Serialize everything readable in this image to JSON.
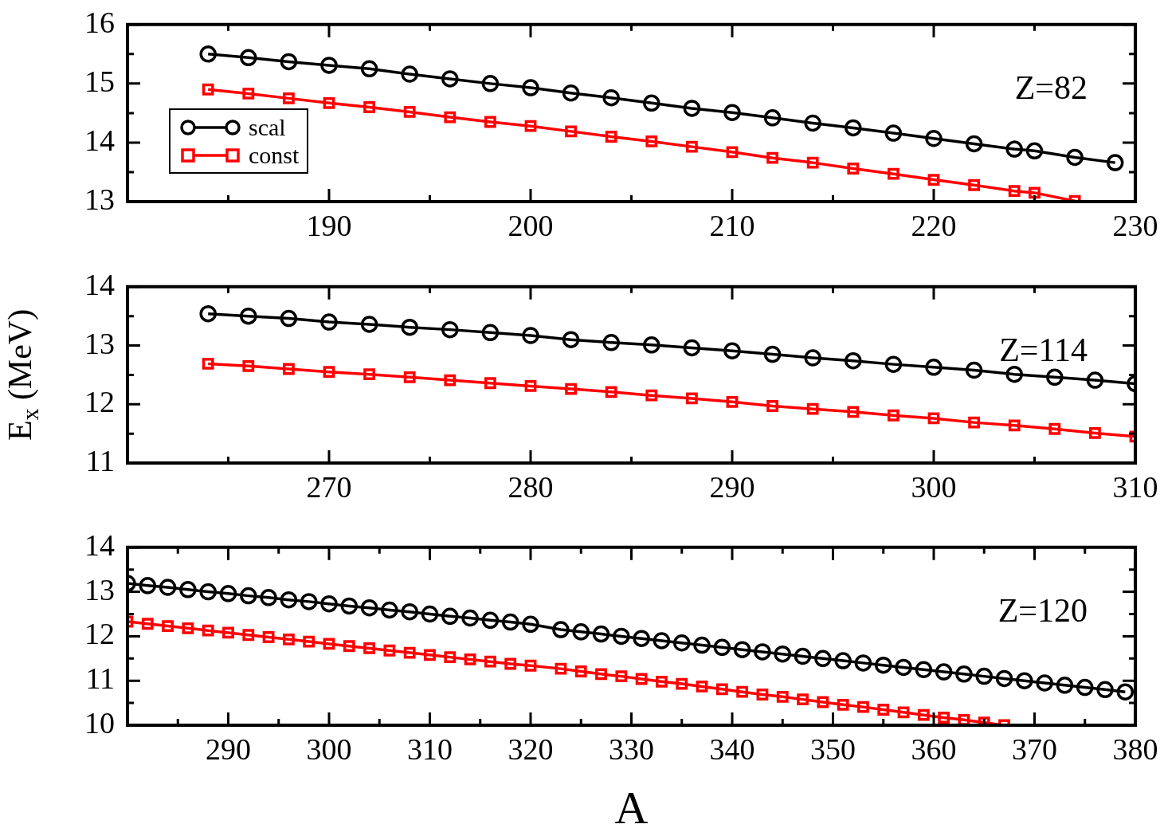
{
  "chart_data": [
    {
      "type": "line",
      "xlim": [
        180,
        230
      ],
      "ylim": [
        13,
        16
      ],
      "xticks": [
        {
          "value": 185,
          "label": null
        },
        190,
        {
          "value": 195,
          "label": null
        },
        200,
        {
          "value": 205,
          "label": null
        },
        210,
        {
          "value": 215,
          "label": null
        },
        220,
        {
          "value": 225,
          "label": null
        },
        230
      ],
      "yticks": [
        13,
        {
          "value": 13.5,
          "label": null
        },
        14,
        {
          "value": 14.5,
          "label": null
        },
        15,
        {
          "value": 15.5,
          "label": null
        },
        16
      ],
      "grid": false,
      "legend": "left",
      "line_style": "solid",
      "annotations": [
        "Z=82"
      ],
      "series": [
        {
          "name": "scal",
          "color": "#000000",
          "marker": "circle",
          "x": [
            184,
            186,
            188,
            190,
            192,
            194,
            196,
            198,
            200,
            202,
            204,
            206,
            208,
            210,
            212,
            214,
            216,
            218,
            220,
            222,
            224,
            225,
            227,
            229
          ],
          "values": [
            15.5,
            15.44,
            15.37,
            15.31,
            15.25,
            15.16,
            15.08,
            15.0,
            14.93,
            14.84,
            14.76,
            14.67,
            14.58,
            14.51,
            14.42,
            14.33,
            14.25,
            14.16,
            14.07,
            13.98,
            13.89,
            13.86,
            13.75,
            13.66
          ]
        },
        {
          "name": "const",
          "color": "#ff0000",
          "marker": "square",
          "x": [
            184,
            186,
            188,
            190,
            192,
            194,
            196,
            198,
            200,
            202,
            204,
            206,
            208,
            210,
            212,
            214,
            216,
            218,
            220,
            222,
            224,
            225,
            227
          ],
          "values": [
            14.9,
            14.83,
            14.75,
            14.67,
            14.6,
            14.52,
            14.43,
            14.35,
            14.28,
            14.19,
            14.1,
            14.02,
            13.93,
            13.84,
            13.74,
            13.66,
            13.56,
            13.47,
            13.37,
            13.28,
            13.18,
            13.15,
            13.01
          ]
        }
      ]
    },
    {
      "type": "line",
      "xlim": [
        260,
        310
      ],
      "ylim": [
        11,
        14
      ],
      "ylabel": "E$_{x}$ (MeV)",
      "xticks": [
        {
          "value": 265,
          "label": null
        },
        270,
        {
          "value": 275,
          "label": null
        },
        280,
        {
          "value": 285,
          "label": null
        },
        290,
        {
          "value": 295,
          "label": null
        },
        300,
        {
          "value": 305,
          "label": null
        },
        310
      ],
      "yticks": [
        11,
        {
          "value": 11.5,
          "label": null
        },
        12,
        {
          "value": 12.5,
          "label": null
        },
        13,
        {
          "value": 13.5,
          "label": null
        },
        14
      ],
      "grid": false,
      "line_style": "solid",
      "annotations": [
        "Z=114"
      ],
      "series": [
        {
          "color": "#000000",
          "marker": "circle",
          "x": [
            264,
            266,
            268,
            270,
            272,
            274,
            276,
            278,
            280,
            282,
            284,
            286,
            288,
            290,
            292,
            294,
            296,
            298,
            300,
            302,
            304,
            306,
            308,
            310
          ],
          "values": [
            13.54,
            13.5,
            13.46,
            13.4,
            13.36,
            13.31,
            13.27,
            13.22,
            13.17,
            13.1,
            13.05,
            13.01,
            12.96,
            12.91,
            12.85,
            12.79,
            12.74,
            12.68,
            12.63,
            12.58,
            12.51,
            12.46,
            12.41,
            12.35
          ]
        },
        {
          "color": "#ff0000",
          "marker": "square",
          "x": [
            264,
            266,
            268,
            270,
            272,
            274,
            276,
            278,
            280,
            282,
            284,
            286,
            288,
            290,
            292,
            294,
            296,
            298,
            300,
            302,
            304,
            306,
            308,
            310
          ],
          "values": [
            12.69,
            12.65,
            12.6,
            12.55,
            12.51,
            12.46,
            12.41,
            12.36,
            12.31,
            12.26,
            12.21,
            12.15,
            12.1,
            12.04,
            11.97,
            11.92,
            11.87,
            11.81,
            11.76,
            11.69,
            11.64,
            11.58,
            11.51,
            11.45
          ]
        }
      ]
    },
    {
      "type": "line",
      "xlim": [
        280,
        380
      ],
      "ylim": [
        10,
        14
      ],
      "xlabel": "A",
      "xticks": [
        {
          "value": 285,
          "label": null
        },
        290,
        {
          "value": 295,
          "label": null
        },
        300,
        {
          "value": 305,
          "label": null
        },
        310,
        {
          "value": 315,
          "label": null
        },
        320,
        {
          "value": 325,
          "label": null
        },
        330,
        {
          "value": 335,
          "label": null
        },
        340,
        {
          "value": 345,
          "label": null
        },
        350,
        {
          "value": 355,
          "label": null
        },
        360,
        {
          "value": 365,
          "label": null
        },
        370,
        {
          "value": 375,
          "label": null
        },
        380
      ],
      "yticks": [
        10,
        {
          "value": 10.5,
          "label": null
        },
        11,
        {
          "value": 11.5,
          "label": null
        },
        12,
        {
          "value": 12.5,
          "label": null
        },
        13,
        {
          "value": 13.5,
          "label": null
        },
        14
      ],
      "grid": false,
      "line_style": "solid",
      "annotations": [
        "Z=120"
      ],
      "series": [
        {
          "color": "#000000",
          "marker": "circle",
          "x": [
            280,
            282,
            284,
            286,
            288,
            290,
            292,
            294,
            296,
            298,
            300,
            302,
            304,
            306,
            308,
            310,
            312,
            314,
            316,
            318,
            320,
            323,
            325,
            327,
            329,
            331,
            333,
            335,
            337,
            339,
            341,
            343,
            345,
            347,
            349,
            351,
            353,
            355,
            357,
            359,
            361,
            363,
            365,
            367,
            369,
            371,
            373,
            375,
            377,
            379
          ],
          "values": [
            13.19,
            13.14,
            13.1,
            13.05,
            13.0,
            12.96,
            12.91,
            12.87,
            12.82,
            12.78,
            12.73,
            12.68,
            12.64,
            12.59,
            12.55,
            12.5,
            12.45,
            12.41,
            12.36,
            12.32,
            12.27,
            12.15,
            12.1,
            12.05,
            12.0,
            11.95,
            11.9,
            11.85,
            11.8,
            11.75,
            11.7,
            11.65,
            11.6,
            11.55,
            11.5,
            11.45,
            11.4,
            11.35,
            11.3,
            11.25,
            11.2,
            11.15,
            11.1,
            11.05,
            11.0,
            10.95,
            10.9,
            10.85,
            10.8,
            10.75
          ]
        },
        {
          "color": "#ff0000",
          "marker": "square",
          "x": [
            280,
            282,
            284,
            286,
            288,
            290,
            292,
            294,
            296,
            298,
            300,
            302,
            304,
            306,
            308,
            310,
            312,
            314,
            316,
            318,
            320,
            323,
            325,
            327,
            329,
            331,
            333,
            335,
            337,
            339,
            341,
            343,
            345,
            347,
            349,
            351,
            353,
            355,
            357,
            359,
            361,
            363,
            365,
            367
          ],
          "values": [
            12.33,
            12.28,
            12.23,
            12.18,
            12.13,
            12.08,
            12.03,
            11.98,
            11.93,
            11.88,
            11.83,
            11.78,
            11.73,
            11.68,
            11.63,
            11.58,
            11.53,
            11.48,
            11.43,
            11.38,
            11.34,
            11.27,
            11.21,
            11.15,
            11.1,
            11.04,
            10.98,
            10.93,
            10.87,
            10.81,
            10.75,
            10.69,
            10.64,
            10.58,
            10.52,
            10.46,
            10.41,
            10.35,
            10.29,
            10.23,
            10.17,
            10.12,
            10.06,
            10.0
          ]
        }
      ]
    }
  ]
}
